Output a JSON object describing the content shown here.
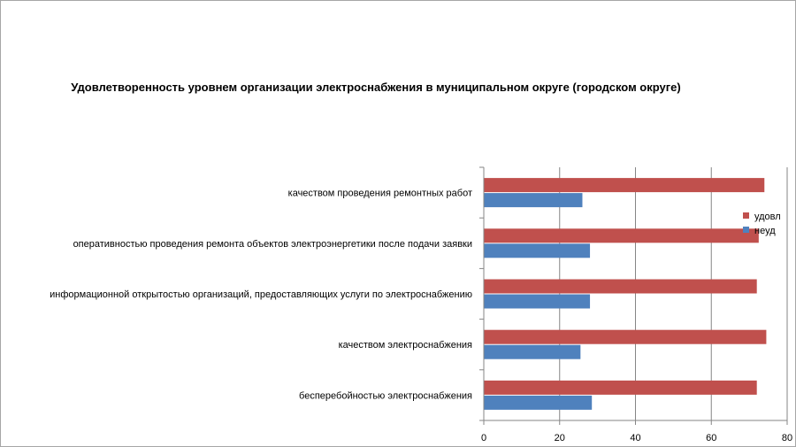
{
  "chart_data": {
    "type": "bar",
    "orientation": "horizontal",
    "title": "Удовлетворенность уровнем организации электроснабжения в муниципальном округе (городском округе)",
    "categories": [
      "качеством проведения ремонтных работ",
      "оперативностью проведения ремонта объектов электроэнергетики после подачи заявки",
      "информационной открытостью организаций, предоставляющих услуги по электроснабжению",
      "качеством электроснабжения",
      "бесперебойностью электроснабжения"
    ],
    "series": [
      {
        "name": "удовл",
        "color": "#c0504d",
        "values": [
          74,
          72.5,
          72,
          74.5,
          72
        ]
      },
      {
        "name": "неуд",
        "color": "#4f81bd",
        "values": [
          26,
          28,
          28,
          25.5,
          28.5
        ]
      }
    ],
    "xlim": [
      0,
      80
    ],
    "xticks": [
      0,
      20,
      40,
      60,
      80
    ],
    "grid": true,
    "legend": "right"
  }
}
